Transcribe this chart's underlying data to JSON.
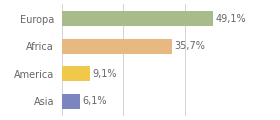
{
  "categories": [
    "Europa",
    "Africa",
    "America",
    "Asia"
  ],
  "values": [
    49.1,
    35.7,
    9.1,
    6.1
  ],
  "labels": [
    "49,1%",
    "35,7%",
    "9,1%",
    "6,1%"
  ],
  "bar_colors": [
    "#a8bb8a",
    "#e8b882",
    "#f0c84a",
    "#7b85c0"
  ],
  "background_color": "#ffffff",
  "xlim_max": 60,
  "grid_lines": [
    0,
    20,
    40,
    60
  ],
  "grid_color": "#cccccc",
  "label_fontsize": 7.0,
  "tick_fontsize": 7.0,
  "bar_height": 0.55,
  "label_color": "#666666",
  "tick_color": "#666666"
}
